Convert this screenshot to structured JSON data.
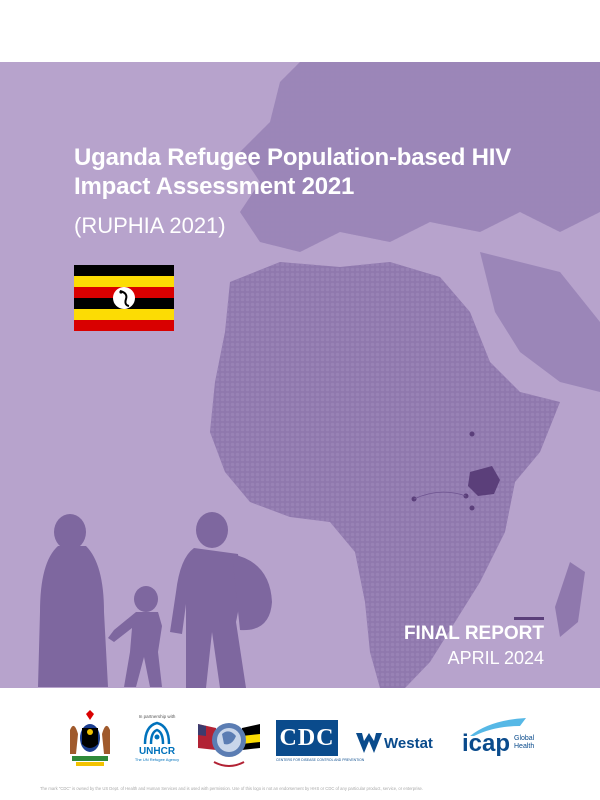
{
  "title": "Uganda Refugee Population-based HIV Impact Assessment 2021",
  "subtitle": "(RUPHIA 2021)",
  "report_label": "FINAL REPORT",
  "report_date": "APRIL 2024",
  "colors": {
    "cover_background": "#b7a3cc",
    "map": "#8a73a8",
    "silhouettes": "#7e679f",
    "uganda_highlight": "#5b3f7a",
    "text": "#ffffff"
  },
  "flag": {
    "country": "Uganda",
    "stripes": [
      "#000000",
      "#fcdc04",
      "#d90000",
      "#000000",
      "#fcdc04",
      "#d90000"
    ]
  },
  "logos": {
    "uganda_coat_of_arms": "uganda-coat-of-arms",
    "unhcr": {
      "small_text": "In partnership with",
      "name": "UNHCR",
      "tagline": "The UN Refugee Agency"
    },
    "pepfar": "pepfar-logo",
    "cdc": {
      "name": "CDC",
      "tagline": "CENTERS FOR DISEASE CONTROL AND PREVENTION"
    },
    "westat": {
      "name": "Westat"
    },
    "icap": {
      "name": "icap",
      "tagline_1": "Global",
      "tagline_2": "Health"
    }
  },
  "footnote": "The mark \"CDC\" is owned by the US Dept. of Health and Human Services and is used with permission. Use of this logo is not an endorsement by HHS or CDC of any particular product, service, or enterprise."
}
